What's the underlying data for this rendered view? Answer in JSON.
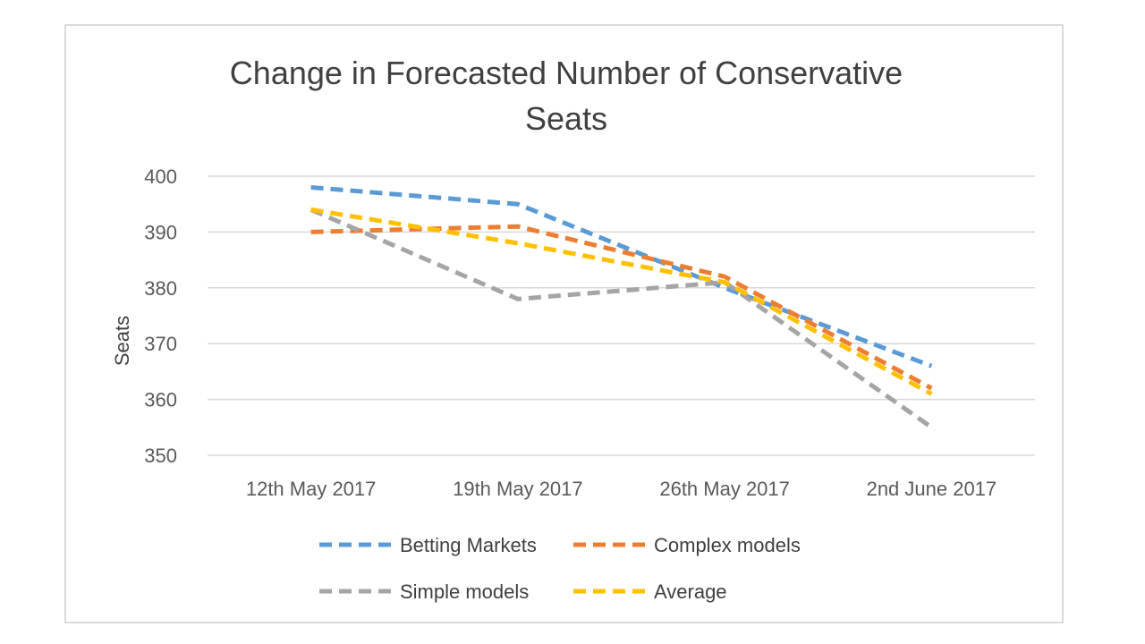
{
  "chart_data": {
    "type": "line",
    "title": "Change in Forecasted Number of Conservative Seats",
    "title_lines": [
      "Change in Forecasted Number of Conservative",
      "Seats"
    ],
    "xlabel": "",
    "ylabel": "Seats",
    "categories": [
      "12th May 2017",
      "19th May 2017",
      "26th May 2017",
      "2nd June 2017"
    ],
    "ylim": [
      350,
      400
    ],
    "yticks": [
      350,
      360,
      370,
      380,
      390,
      400
    ],
    "grid": true,
    "legend_position": "bottom",
    "line_style": "dashed",
    "series": [
      {
        "name": "Betting Markets",
        "color": "#5b9bd5",
        "values": [
          398,
          395,
          380,
          366
        ]
      },
      {
        "name": "Complex models",
        "color": "#ed7d31",
        "values": [
          390,
          391,
          382,
          362
        ]
      },
      {
        "name": "Simple models",
        "color": "#a5a5a5",
        "values": [
          394,
          378,
          381,
          355
        ]
      },
      {
        "name": "Average",
        "color": "#ffc000",
        "values": [
          394,
          388,
          381,
          361
        ]
      }
    ]
  }
}
